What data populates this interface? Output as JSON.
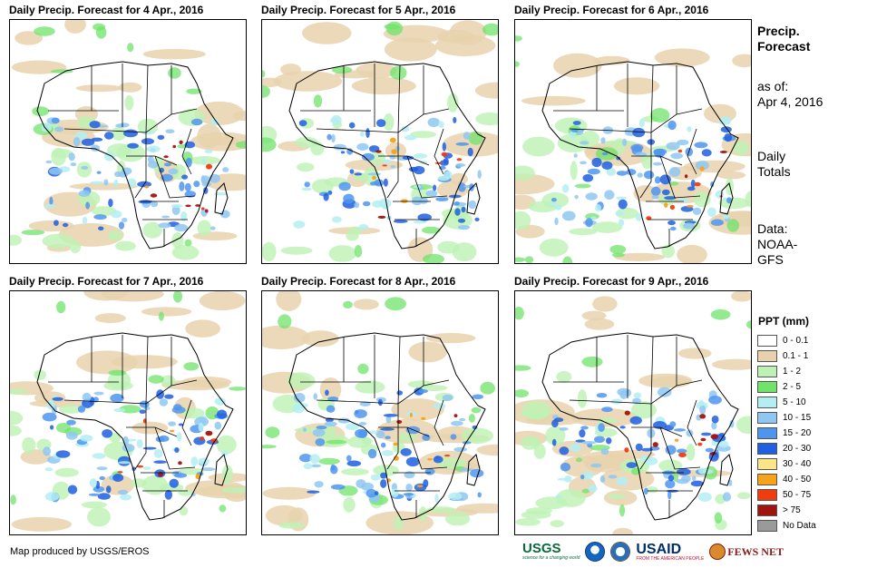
{
  "panels": [
    {
      "title": "Daily Precip. Forecast for 4 Apr., 2016"
    },
    {
      "title": "Daily Precip. Forecast for 5 Apr., 2016"
    },
    {
      "title": "Daily Precip. Forecast for 6 Apr., 2016"
    },
    {
      "title": "Daily Precip. Forecast for 7 Apr., 2016"
    },
    {
      "title": "Daily Precip. Forecast for 8 Apr., 2016"
    },
    {
      "title": "Daily Precip. Forecast for 9 Apr., 2016"
    }
  ],
  "side": {
    "title_line1": "Precip.",
    "title_line2": "Forecast",
    "asof_label": "as of:",
    "asof_date": "Apr 4, 2016",
    "totals_line1": "Daily",
    "totals_line2": "Totals",
    "data_line1": "Data:",
    "data_line2": "NOAA-",
    "data_line3": "GFS"
  },
  "legend": {
    "title": "PPT (mm)",
    "items": [
      {
        "label": "0 - 0.1",
        "color": "#ffffff"
      },
      {
        "label": "0.1 - 1",
        "color": "#e8d2ad"
      },
      {
        "label": "1 - 2",
        "color": "#bdf2b4"
      },
      {
        "label": "2 - 5",
        "color": "#6fe36a"
      },
      {
        "label": "5 - 10",
        "color": "#b4eef2"
      },
      {
        "label": "10 - 15",
        "color": "#8fc7f2"
      },
      {
        "label": "15 - 20",
        "color": "#4f95ee"
      },
      {
        "label": "20 - 30",
        "color": "#1f5fe0"
      },
      {
        "label": "30 - 40",
        "color": "#fde58a"
      },
      {
        "label": "40 - 50",
        "color": "#f7a21b"
      },
      {
        "label": "50 - 75",
        "color": "#f03c0f"
      },
      {
        "label": "> 75",
        "color": "#a0140f"
      },
      {
        "label": "No Data",
        "color": "#9a9a9a"
      }
    ]
  },
  "footer": {
    "credit": "Map produced by USGS/EROS",
    "logos": {
      "usgs": "USGS",
      "usgs_tag": "science for a changing world",
      "usaid": "USAID",
      "usaid_tag": "FROM THE AMERICAN PEOPLE",
      "fews": "FEWS NET"
    }
  },
  "colors": {
    "sea": "#ffffff",
    "border": "#000000"
  }
}
